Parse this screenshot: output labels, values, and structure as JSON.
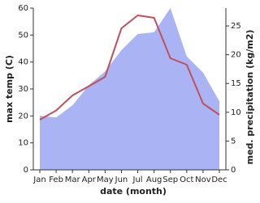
{
  "chart_data": {
    "type": "line-area",
    "x_label": "date (month)",
    "y_label": "max temp (C)",
    "y2_label": "med. precipitation (kg/m2)",
    "categories": [
      "Jan",
      "Feb",
      "Mar",
      "Apr",
      "May",
      "Jun",
      "Jul",
      "Aug",
      "Sep",
      "Oct",
      "Nov",
      "Dec"
    ],
    "series": [
      {
        "name": "max temp",
        "kind": "line",
        "color": "#c0505a",
        "values": [
          18.6,
          22,
          27.6,
          31,
          34.5,
          52.5,
          57.3,
          56.4,
          41.4,
          39,
          24.6,
          20.4
        ]
      },
      {
        "name": "med. precipitation",
        "kind": "area",
        "axis": "y2",
        "color": "#aab4f5",
        "values": [
          9.4,
          9.1,
          11.2,
          14.7,
          17.1,
          20.8,
          23.6,
          23.9,
          28.1,
          19.7,
          16.9,
          11.9
        ]
      }
    ],
    "ylim": [
      0,
      60
    ],
    "yticks": [
      0,
      10,
      20,
      30,
      40,
      50,
      60
    ],
    "y2lim": [
      0,
      28.1
    ],
    "y2ticks": [
      0,
      5,
      10,
      15,
      20,
      25
    ]
  }
}
